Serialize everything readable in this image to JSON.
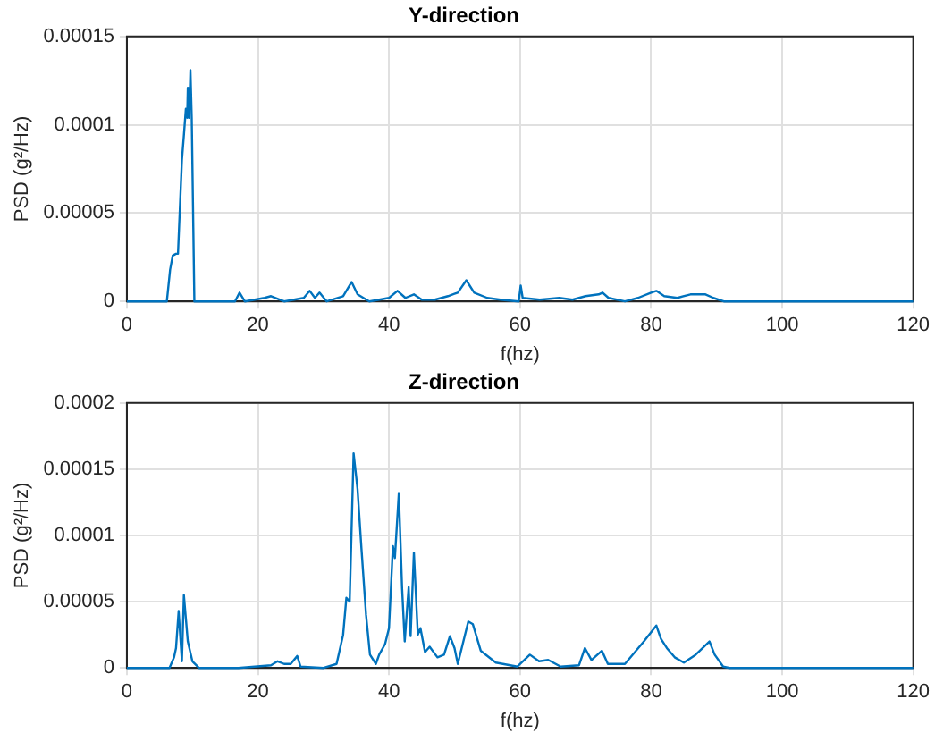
{
  "chart_data": [
    {
      "type": "line",
      "title": "Y-direction",
      "xlabel": "f(hz)",
      "ylabel": "PSD (g²/Hz)",
      "xlim": [
        0,
        120
      ],
      "xticks": [
        0,
        20,
        40,
        60,
        80,
        100,
        120
      ],
      "ylim": [
        0,
        0.00015
      ],
      "yticks": [
        0,
        {
          "value": 5e-05,
          "label": "0.00005"
        },
        0.0001,
        0.00015
      ],
      "grid": true,
      "legend": false,
      "marker": "none",
      "line_style": "solid",
      "series": [
        {
          "color": "#0072bd",
          "x": [
            0,
            6.1,
            6.6,
            7.0,
            7.5,
            7.8,
            8.4,
            8.7,
            9.0,
            9.2,
            9.3,
            9.5,
            9.7,
            9.9,
            10.3,
            16.5,
            17.2,
            18,
            21,
            22,
            24,
            27,
            27.9,
            28.7,
            29.4,
            30.5,
            33,
            34.3,
            35.2,
            37,
            40,
            41.3,
            42.5,
            43.8,
            45,
            47,
            49,
            50.5,
            51.8,
            53,
            55,
            57,
            59.8,
            60.1,
            60.4,
            63,
            66,
            68,
            70,
            72,
            72.6,
            73.5,
            76,
            78,
            80,
            80.8,
            82,
            84,
            86,
            88.3,
            89.5,
            91.1,
            120
          ],
          "values": [
            0,
            0,
            1.8e-05,
            2.6e-05,
            2.7e-05,
            2.7e-05,
            8e-05,
            9.4e-05,
            0.000109,
            0.000104,
            0.000121,
            0.000104,
            0.000131,
            0.000104,
            0,
            0,
            5e-06,
            0,
            2e-06,
            3e-06,
            0,
            2e-06,
            6e-06,
            2e-06,
            5e-06,
            0,
            3e-06,
            1.1e-05,
            4e-06,
            0,
            2e-06,
            6e-06,
            2e-06,
            4e-06,
            1e-06,
            1e-06,
            3e-06,
            5e-06,
            1.2e-05,
            5e-06,
            2e-06,
            1e-06,
            0,
            9e-06,
            2e-06,
            1e-06,
            2e-06,
            1e-06,
            3e-06,
            4e-06,
            5e-06,
            2e-06,
            0,
            2e-06,
            5e-06,
            6e-06,
            3e-06,
            2e-06,
            4e-06,
            4e-06,
            2e-06,
            0,
            0
          ]
        }
      ]
    },
    {
      "type": "line",
      "title": "Z-direction",
      "xlabel": "f(hz)",
      "ylabel": "PSD (g²/Hz)",
      "xlim": [
        0,
        120
      ],
      "xticks": [
        0,
        20,
        40,
        60,
        80,
        100,
        120
      ],
      "ylim": [
        0,
        0.0002
      ],
      "yticks": [
        0,
        {
          "value": 5e-05,
          "label": "0.00005"
        },
        0.0001,
        0.00015,
        0.0002
      ],
      "grid": true,
      "legend": false,
      "marker": "none",
      "line_style": "solid",
      "series": [
        {
          "color": "#0072bd",
          "x": [
            0,
            6.5,
            7.2,
            7.5,
            7.9,
            8.4,
            8.7,
            9.3,
            10,
            11,
            17,
            22,
            23,
            24,
            25,
            26,
            26.5,
            30,
            32,
            33,
            33.5,
            34,
            34.6,
            35.2,
            35.8,
            36.5,
            37.1,
            38,
            38.5,
            39.4,
            40,
            40.6,
            40.9,
            41.5,
            42,
            42.4,
            43,
            43.3,
            43.8,
            44.4,
            44.8,
            45.5,
            46.2,
            47.4,
            48.4,
            49.3,
            50,
            50.5,
            52.1,
            52.8,
            54,
            56.3,
            59.6,
            61.5,
            62.9,
            64.3,
            66.2,
            69,
            69.9,
            70.9,
            72.5,
            73.4,
            76,
            78.9,
            80.8,
            81.5,
            82.4,
            83.6,
            85,
            86.8,
            88.9,
            89.7,
            91,
            92,
            120
          ],
          "values": [
            0,
            0,
            8e-06,
            1.5e-05,
            4.3e-05,
            5e-06,
            5.5e-05,
            2e-05,
            5e-06,
            0,
            0,
            2e-06,
            5e-06,
            3e-06,
            3e-06,
            9e-06,
            1e-06,
            0,
            3e-06,
            2.5e-05,
            5.3e-05,
            5e-05,
            0.000162,
            0.000135,
            9e-05,
            4e-05,
            1e-05,
            3e-06,
            1e-05,
            1.8e-05,
            3e-05,
            9.2e-05,
            8.3e-05,
            0.000132,
            6e-05,
            2e-05,
            6.1e-05,
            2.4e-05,
            8.7e-05,
            2.5e-05,
            3e-05,
            1.2e-05,
            1.6e-05,
            8e-06,
            1e-05,
            2.4e-05,
            1.5e-05,
            3e-06,
            3.5e-05,
            3.3e-05,
            1.3e-05,
            4e-06,
            1e-06,
            1e-05,
            5e-06,
            6e-06,
            1e-06,
            2e-06,
            1.5e-05,
            6e-06,
            1.3e-05,
            3e-06,
            3e-06,
            2e-05,
            3.2e-05,
            2.2e-05,
            1.5e-05,
            8e-06,
            4e-06,
            1e-05,
            2e-05,
            1e-05,
            1e-06,
            0,
            0
          ]
        }
      ]
    }
  ]
}
